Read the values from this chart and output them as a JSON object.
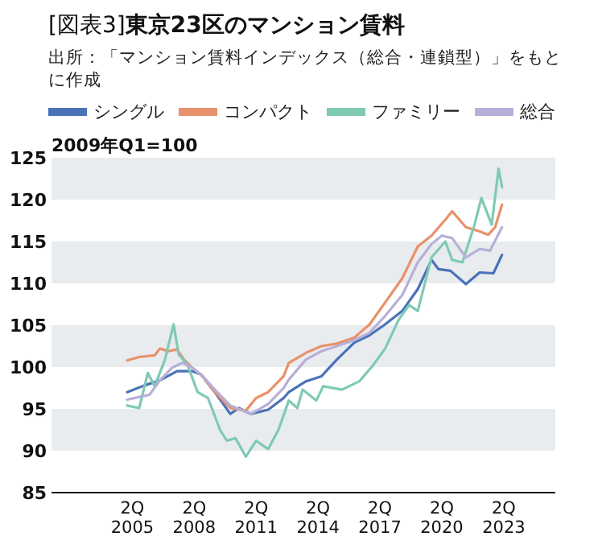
{
  "chart_data": {
    "type": "line",
    "title": "[図表3]**東京23区のマンション賃料**",
    "annotations": [
      "出所：「マンション賃料インデックス（総合・連鎖型）」をもとに作成"
    ],
    "ylabel": "2009年Q1=100",
    "legend": "top",
    "line_style": "solid",
    "bands": [
      {
        "axis": "y",
        "from": 90,
        "to": 95,
        "color": "#e9ecef"
      },
      {
        "axis": "y",
        "from": 100,
        "to": 105,
        "color": "#e9ecef"
      },
      {
        "axis": "y",
        "from": 110,
        "to": 115,
        "color": "#e9ecef"
      },
      {
        "axis": "y",
        "from": 120,
        "to": 125,
        "color": "#e9ecef"
      }
    ],
    "xlim": [
      "2001-05",
      "2025-10"
    ],
    "ylim": [
      85,
      125
    ],
    "xticks": [
      {
        "value": "2005-04",
        "label": "2Q 2005"
      },
      {
        "value": "2008-04",
        "label": "2Q 2008"
      },
      {
        "value": "2011-04",
        "label": "2Q 2011"
      },
      {
        "value": "2014-04",
        "label": "2Q 2014"
      },
      {
        "value": "2017-04",
        "label": "2Q 2017"
      },
      {
        "value": "2020-04",
        "label": "2Q 2020"
      },
      {
        "value": "2023-04",
        "label": "2Q 2023"
      }
    ],
    "yticks": [
      85,
      90,
      95,
      100,
      105,
      110,
      115,
      120,
      125
    ],
    "series": [
      {
        "name": "シングル",
        "color": "#4a72b8",
        "x": [
          "2005-01",
          "2005-11",
          "2006-08",
          "2007-06",
          "2008-03",
          "2008-08",
          "2009-04",
          "2010-01",
          "2010-06",
          "2011-01",
          "2011-11",
          "2012-08",
          "2012-11",
          "2013-09",
          "2014-06",
          "2015-03",
          "2016-01",
          "2016-10",
          "2017-07",
          "2018-05",
          "2019-02",
          "2019-10",
          "2020-02",
          "2020-09",
          "2021-06",
          "2022-02",
          "2022-10",
          "2023-03"
        ],
        "values": [
          97.0,
          97.8,
          98.4,
          99.5,
          99.5,
          99.1,
          97.0,
          94.4,
          95.1,
          94.4,
          94.9,
          96.3,
          97.0,
          98.3,
          98.9,
          100.9,
          102.9,
          103.8,
          105.1,
          106.7,
          109.3,
          112.8,
          111.7,
          111.5,
          109.9,
          111.3,
          111.2,
          113.4
        ]
      },
      {
        "name": "コンパクト",
        "color": "#e8916b",
        "x": [
          "2005-01",
          "2005-08",
          "2006-05",
          "2006-08",
          "2007-01",
          "2007-06",
          "2007-10",
          "2008-03",
          "2008-09",
          "2009-04",
          "2010-01",
          "2010-10",
          "2011-04",
          "2011-11",
          "2012-08",
          "2012-11",
          "2013-09",
          "2014-06",
          "2015-03",
          "2016-01",
          "2016-10",
          "2017-07",
          "2018-05",
          "2019-02",
          "2019-10",
          "2020-06",
          "2020-10",
          "2021-06",
          "2022-02",
          "2022-07",
          "2022-11",
          "2023-03"
        ],
        "values": [
          100.8,
          101.2,
          101.4,
          102.2,
          101.9,
          102.1,
          100.9,
          99.9,
          98.9,
          97.0,
          95.1,
          94.8,
          96.3,
          97.0,
          98.9,
          100.5,
          101.7,
          102.5,
          102.8,
          103.5,
          105.1,
          107.7,
          110.6,
          114.4,
          115.7,
          117.6,
          118.6,
          116.7,
          116.2,
          115.8,
          116.7,
          119.4
        ]
      },
      {
        "name": "ファミリー",
        "color": "#7fcab5",
        "x": [
          "2005-01",
          "2005-08",
          "2006-01",
          "2006-05",
          "2006-11",
          "2007-04",
          "2007-07",
          "2007-12",
          "2008-06",
          "2008-12",
          "2009-07",
          "2009-11",
          "2010-04",
          "2010-10",
          "2011-04",
          "2011-11",
          "2012-05",
          "2012-11",
          "2013-04",
          "2013-07",
          "2014-03",
          "2014-07",
          "2015-06",
          "2016-04",
          "2016-12",
          "2017-07",
          "2018-03",
          "2018-09",
          "2019-02",
          "2019-10",
          "2020-06",
          "2020-10",
          "2021-04",
          "2021-11",
          "2022-03",
          "2022-09",
          "2023-01",
          "2023-03"
        ],
        "values": [
          95.4,
          95.1,
          99.3,
          97.7,
          100.9,
          105.1,
          101.5,
          100.3,
          97.0,
          96.3,
          92.5,
          91.2,
          91.5,
          89.3,
          91.2,
          90.2,
          92.5,
          96.0,
          95.1,
          97.3,
          96.0,
          97.7,
          97.3,
          98.3,
          100.2,
          102.2,
          105.7,
          107.4,
          106.7,
          113.1,
          115.0,
          112.8,
          112.5,
          117.0,
          120.2,
          117.0,
          123.7,
          121.5
        ]
      },
      {
        "name": "総合",
        "color": "#b6b0d8",
        "x": [
          "2005-01",
          "2006-02",
          "2006-08",
          "2007-03",
          "2007-09",
          "2008-03",
          "2008-09",
          "2009-04",
          "2010-01",
          "2011-01",
          "2011-11",
          "2012-08",
          "2012-11",
          "2013-09",
          "2014-06",
          "2015-03",
          "2016-01",
          "2016-10",
          "2017-07",
          "2018-05",
          "2019-02",
          "2019-10",
          "2020-04",
          "2020-10",
          "2021-06",
          "2022-02",
          "2022-08",
          "2023-03"
        ],
        "values": [
          96.1,
          96.7,
          98.4,
          99.9,
          100.5,
          99.9,
          98.9,
          97.3,
          95.4,
          94.4,
          95.6,
          97.5,
          98.5,
          100.9,
          101.9,
          102.5,
          103.2,
          104.1,
          106.1,
          108.6,
          112.5,
          114.7,
          115.7,
          115.4,
          113.1,
          114.1,
          113.9,
          116.7
        ]
      }
    ]
  }
}
